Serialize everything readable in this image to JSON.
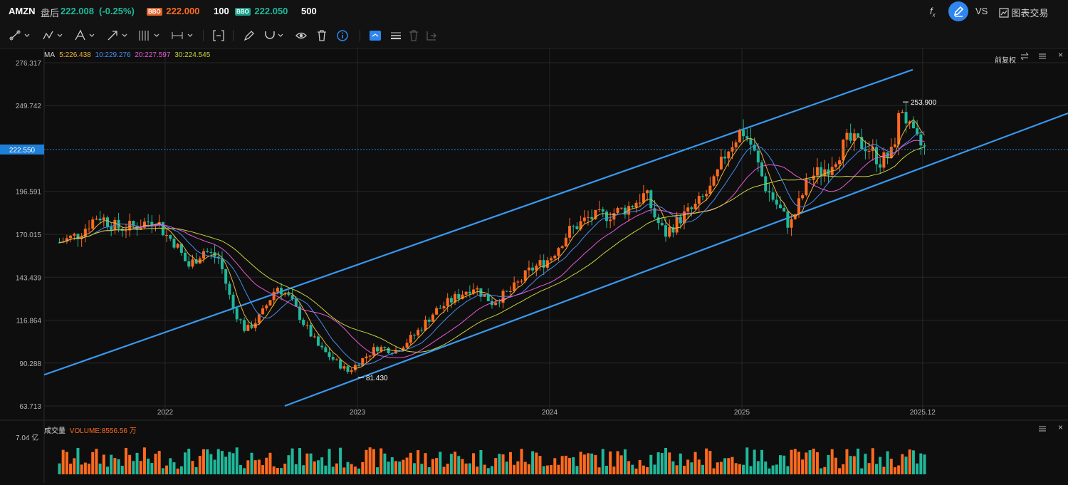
{
  "header": {
    "symbol": "AMZN",
    "session": "盘后",
    "price": "222.008",
    "change": "(-0.25%)",
    "bid_badge": "BBO",
    "bid": "222.000",
    "bid_size": "100",
    "ask_badge": "BBO",
    "ask": "222.050",
    "ask_size": "500",
    "vs_label": "VS",
    "trade_label": "图表交易"
  },
  "indicators": {
    "ma_label": "MA",
    "ma5": "5:226.438",
    "ma10": "10:229.276",
    "ma20": "20:227.597",
    "ma30": "30:224.545",
    "adjust_label": "前复权",
    "volume_label": "成交量",
    "volume_value": "VOLUME:8556.56 万",
    "volume_axis_top": "7.04 亿"
  },
  "colors": {
    "up": "#ff6a1f",
    "down": "#1fb89a",
    "ma5": "#f0b43c",
    "ma10": "#4a8cf0",
    "ma20": "#e85ad8",
    "ma30": "#c8d23c",
    "channel": "#3a98f0",
    "current_price_bg": "#1e7fd8",
    "accent": "#2f86ee"
  },
  "chart_data": {
    "type": "candlestick",
    "x_ticks": [
      "2022",
      "2023",
      "2024",
      "2025",
      "2025.12"
    ],
    "y_ticks": [
      "276.317",
      "249.742",
      "196.591",
      "170.015",
      "143.439",
      "116.864",
      "90.288",
      "63.713"
    ],
    "ylim": [
      63.713,
      276.317
    ],
    "current_price": "222.550",
    "high_label": "253.900",
    "low_label": "81.430",
    "closes_approx": [
      [
        2021.45,
        165
      ],
      [
        2021.55,
        170
      ],
      [
        2021.65,
        182
      ],
      [
        2021.75,
        174
      ],
      [
        2021.85,
        175
      ],
      [
        2021.95,
        180
      ],
      [
        2022.0,
        170
      ],
      [
        2022.05,
        165
      ],
      [
        2022.12,
        150
      ],
      [
        2022.2,
        160
      ],
      [
        2022.28,
        155
      ],
      [
        2022.35,
        125
      ],
      [
        2022.42,
        110
      ],
      [
        2022.5,
        120
      ],
      [
        2022.58,
        138
      ],
      [
        2022.65,
        130
      ],
      [
        2022.72,
        115
      ],
      [
        2022.8,
        100
      ],
      [
        2022.88,
        92
      ],
      [
        2022.95,
        85
      ],
      [
        2023.0,
        90
      ],
      [
        2023.1,
        100
      ],
      [
        2023.2,
        98
      ],
      [
        2023.3,
        108
      ],
      [
        2023.4,
        122
      ],
      [
        2023.5,
        130
      ],
      [
        2023.6,
        138
      ],
      [
        2023.7,
        128
      ],
      [
        2023.8,
        135
      ],
      [
        2023.9,
        148
      ],
      [
        2024.0,
        155
      ],
      [
        2024.1,
        172
      ],
      [
        2024.2,
        180
      ],
      [
        2024.3,
        182
      ],
      [
        2024.4,
        186
      ],
      [
        2024.5,
        195
      ],
      [
        2024.55,
        180
      ],
      [
        2024.6,
        170
      ],
      [
        2024.68,
        180
      ],
      [
        2024.75,
        186
      ],
      [
        2024.85,
        200
      ],
      [
        2024.92,
        222
      ],
      [
        2025.0,
        235
      ],
      [
        2025.05,
        225
      ],
      [
        2025.12,
        200
      ],
      [
        2025.2,
        185
      ],
      [
        2025.25,
        175
      ],
      [
        2025.35,
        205
      ],
      [
        2025.45,
        212
      ],
      [
        2025.55,
        228
      ],
      [
        2025.65,
        225
      ],
      [
        2025.72,
        215
      ],
      [
        2025.78,
        220
      ],
      [
        2025.83,
        250
      ],
      [
        2025.88,
        232
      ],
      [
        2025.92,
        226
      ],
      [
        2025.96,
        222
      ]
    ]
  }
}
